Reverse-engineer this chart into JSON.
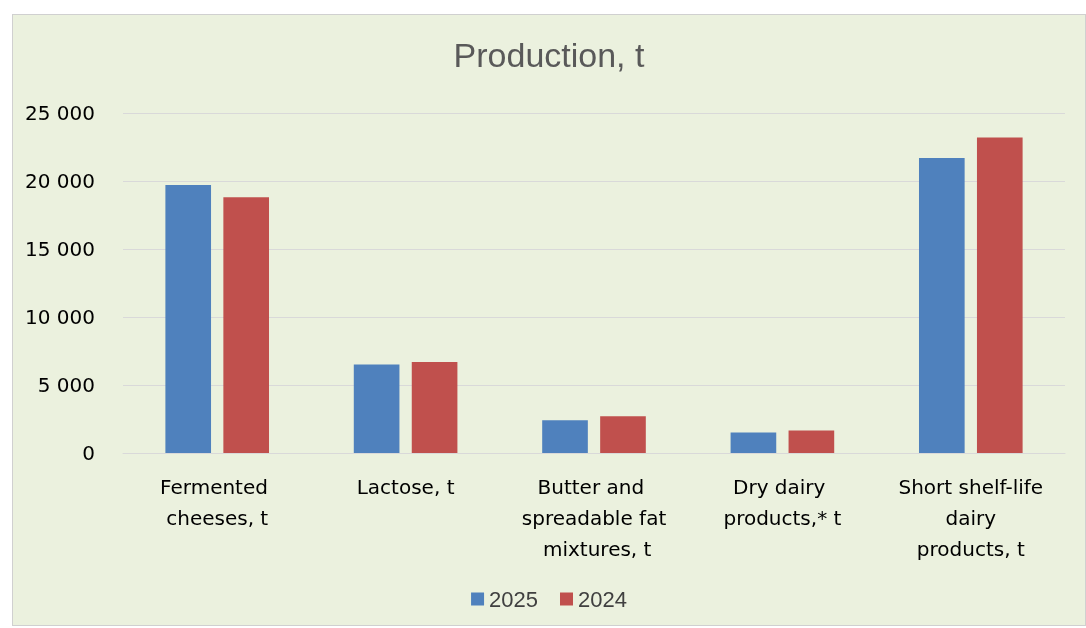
{
  "chart_data": {
    "type": "bar",
    "title": "Production, t",
    "categories": [
      "Fermented cheeses, t",
      "Lactose, t",
      "Butter and spreadable fat mixtures, t",
      "Dry dairy products,* t",
      "Short shelf-life dairy products, t"
    ],
    "series": [
      {
        "name": "2025",
        "color": "#4f81bd",
        "values": [
          19700,
          6500,
          2400,
          1500,
          21700
        ]
      },
      {
        "name": "2024",
        "color": "#c0504d",
        "values": [
          18800,
          6700,
          2700,
          1650,
          23200
        ]
      }
    ],
    "ylim": [
      0,
      25000
    ],
    "yticks": [
      {
        "value": 0,
        "label": "0"
      },
      {
        "value": 5000,
        "label": "5 000"
      },
      {
        "value": 10000,
        "label": "10 000"
      },
      {
        "value": 15000,
        "label": "15 000"
      },
      {
        "value": 20000,
        "label": "20 000"
      },
      {
        "value": 25000,
        "label": "25 000"
      }
    ],
    "grid": "y",
    "legend": "bottom"
  }
}
